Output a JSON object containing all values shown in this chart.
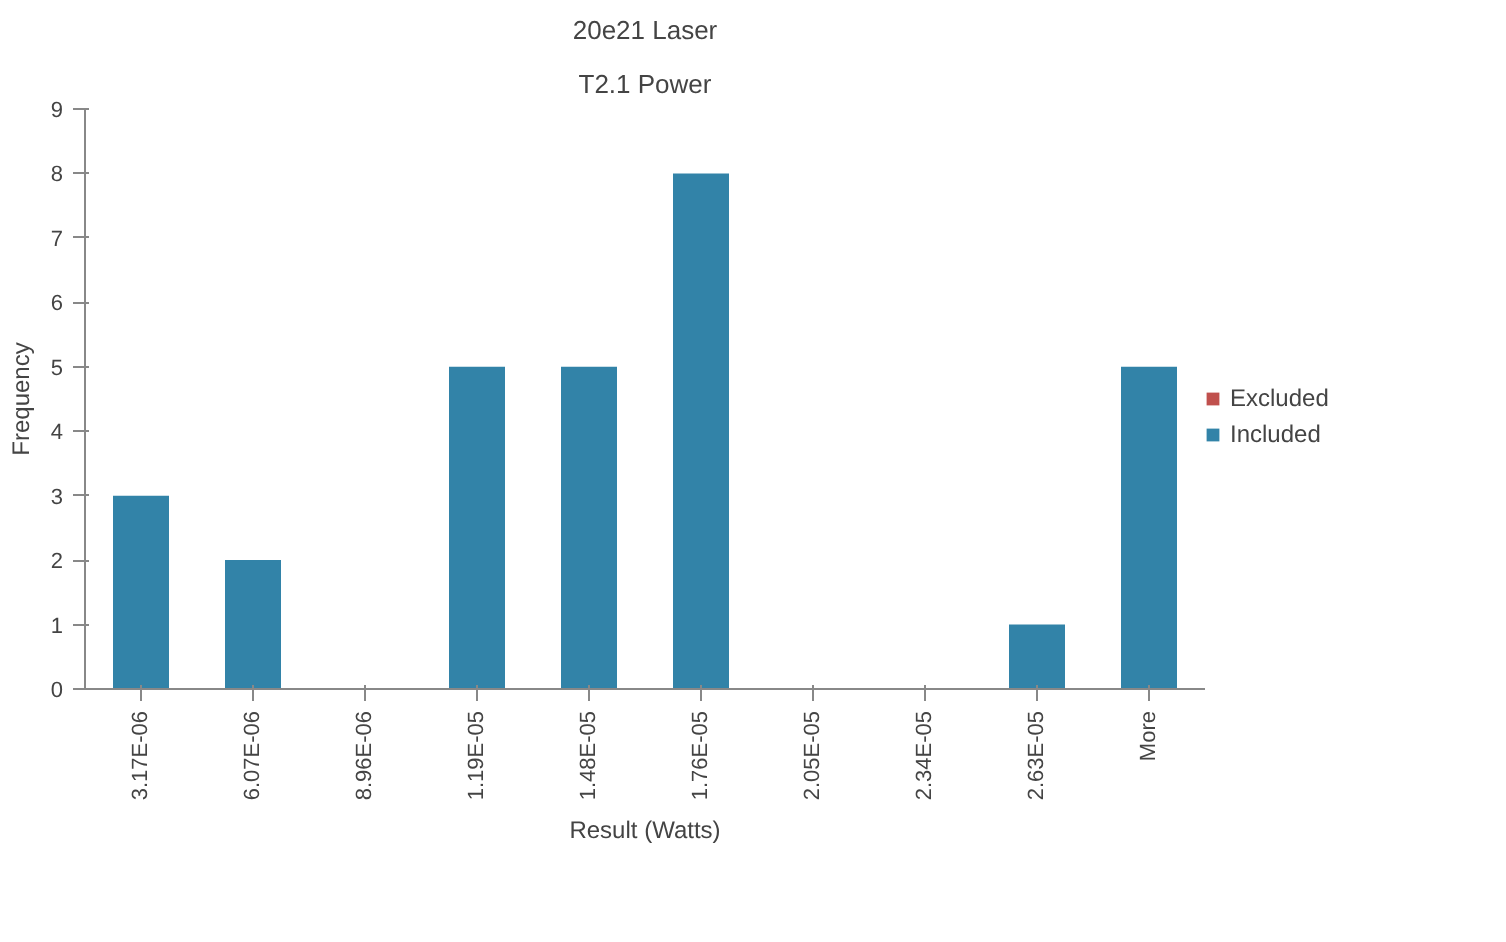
{
  "chart_data": {
    "type": "bar",
    "title": "20e21 Laser",
    "subtitle": "T2.1 Power",
    "xlabel": "Result (Watts)",
    "ylabel": "Frequency",
    "categories": [
      "3.17E-06",
      "6.07E-06",
      "8.96E-06",
      "1.19E-05",
      "1.48E-05",
      "1.76E-05",
      "2.05E-05",
      "2.34E-05",
      "2.63E-05",
      "More"
    ],
    "series": [
      {
        "name": "Included",
        "color": "#3283a8",
        "values": [
          3,
          2,
          0,
          5,
          5,
          8,
          0,
          0,
          1,
          5
        ]
      },
      {
        "name": "Excluded",
        "color": "#c0504d",
        "values": [
          0,
          0,
          0,
          0,
          0,
          0,
          0,
          0,
          0,
          0
        ]
      }
    ],
    "ylim": [
      0,
      9
    ],
    "yticks": [
      0,
      1,
      2,
      3,
      4,
      5,
      6,
      7,
      8,
      9
    ],
    "grid": false,
    "legend": "right"
  }
}
